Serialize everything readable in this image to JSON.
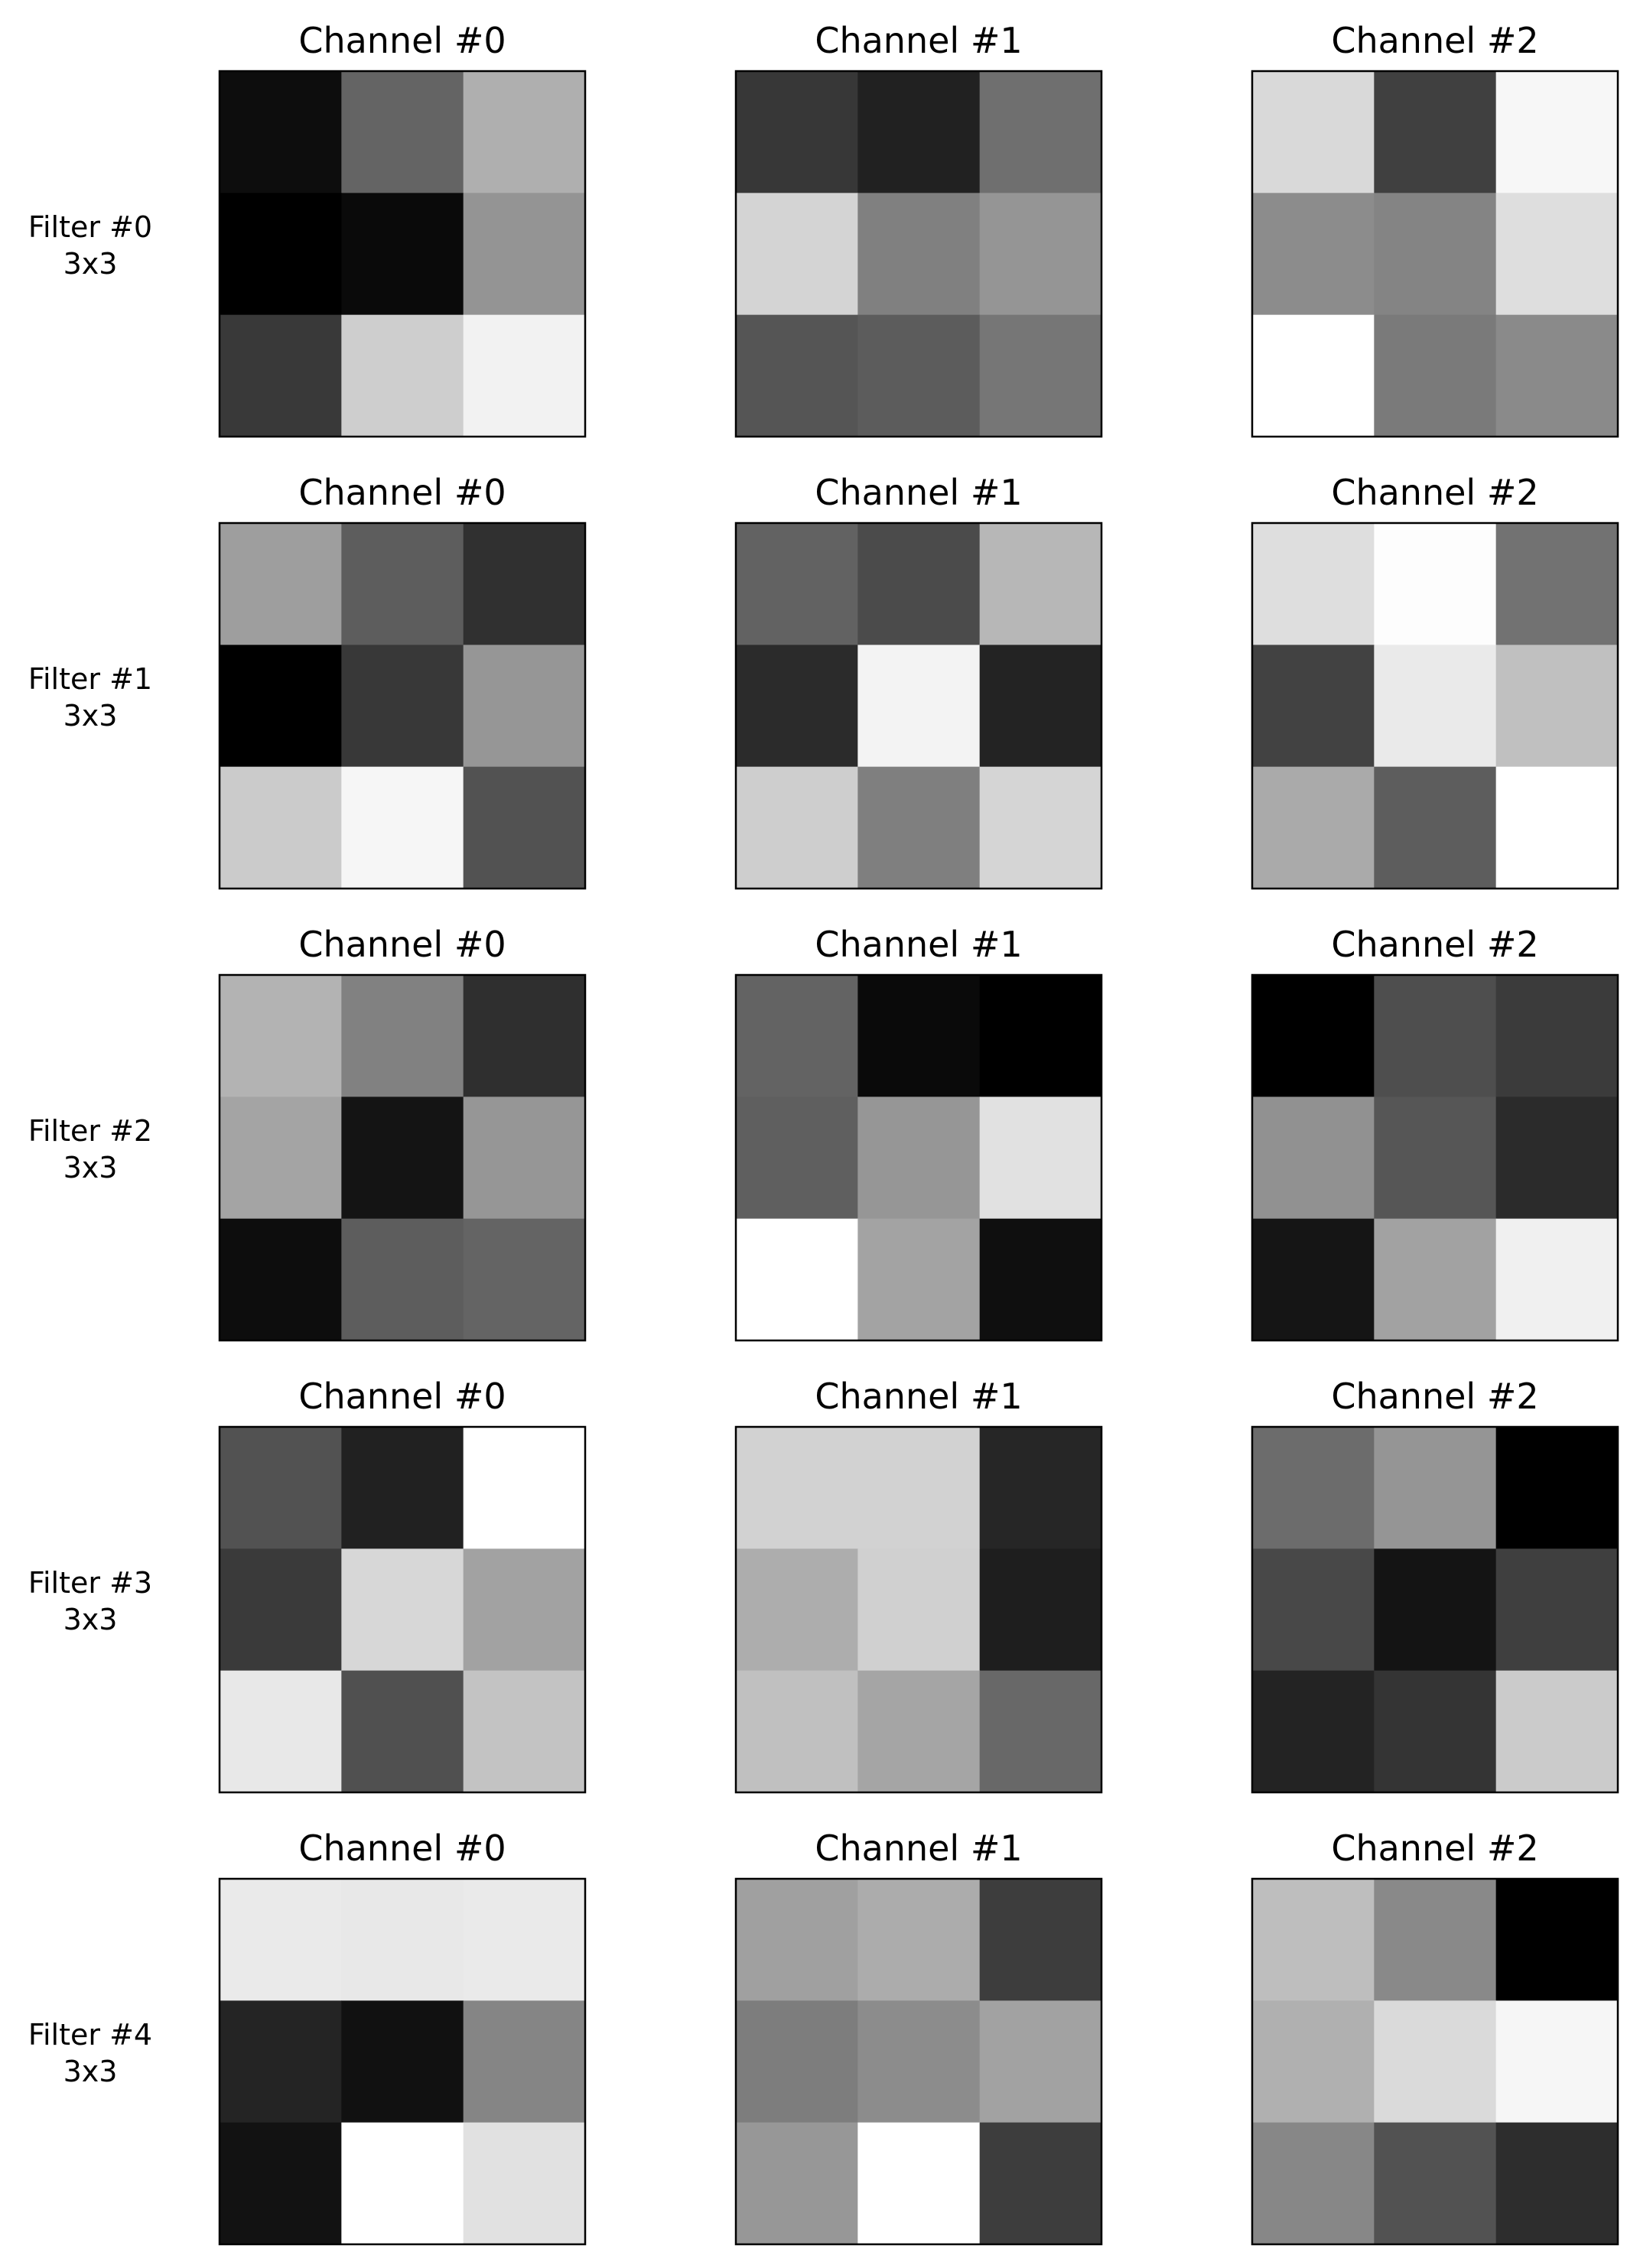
{
  "chart_data": {
    "type": "heatmap",
    "colormap": "gray",
    "value_scale": "grayscale intensity 0-255 (0 = black, 255 = white), read from pixels",
    "columns": [
      "Channel #0",
      "Channel #1",
      "Channel #2"
    ],
    "rows": [
      {
        "label_line1": "Filter #0",
        "label_line2": "3x3",
        "channels": [
          [
            [
              13,
              100,
              175
            ],
            [
              0,
              10,
              148
            ],
            [
              57,
              206,
              242
            ]
          ],
          [
            [
              55,
              33,
              111
            ],
            [
              212,
              128,
              149
            ],
            [
              85,
              92,
              118
            ]
          ],
          [
            [
              217,
              64,
              247
            ],
            [
              140,
              132,
              222
            ],
            [
              255,
              122,
              138
            ]
          ]
        ]
      },
      {
        "label_line1": "Filter #1",
        "label_line2": "3x3",
        "channels": [
          [
            [
              158,
              93,
              48
            ],
            [
              0,
              56,
              150
            ],
            [
              203,
              246,
              82
            ]
          ],
          [
            [
              98,
              75,
              183
            ],
            [
              43,
              243,
              35
            ],
            [
              206,
              127,
              213
            ]
          ],
          [
            [
              222,
              253,
              114
            ],
            [
              66,
              234,
              192
            ],
            [
              170,
              93,
              255
            ]
          ]
        ]
      },
      {
        "label_line1": "Filter #2",
        "label_line2": "3x3",
        "channels": [
          [
            [
              179,
              129,
              47
            ],
            [
              164,
              20,
              150
            ],
            [
              13,
              93,
              100
            ]
          ],
          [
            [
              99,
              10,
              0
            ],
            [
              95,
              150,
              225
            ],
            [
              255,
              163,
              15
            ]
          ],
          [
            [
              0,
              78,
              59
            ],
            [
              145,
              86,
              43
            ],
            [
              21,
              162,
              240
            ]
          ]
        ]
      },
      {
        "label_line1": "Filter #3",
        "label_line2": "3x3",
        "channels": [
          [
            [
              82,
              33,
              255
            ],
            [
              58,
              215,
              162
            ],
            [
              232,
              80,
              195
            ]
          ],
          [
            [
              210,
              210,
              38
            ],
            [
              173,
              208,
              30
            ],
            [
              192,
              165,
              104
            ]
          ],
          [
            [
              108,
              149,
              0
            ],
            [
              72,
              20,
              63
            ],
            [
              35,
              52,
              203
            ]
          ]
        ]
      },
      {
        "label_line1": "Filter #4",
        "label_line2": "3x3",
        "channels": [
          [
            [
              234,
              232,
              234
            ],
            [
              36,
              17,
              133
            ],
            [
              18,
              255,
              225
            ]
          ],
          [
            [
              160,
              172,
              61
            ],
            [
              125,
              140,
              162
            ],
            [
              151,
              255,
              61
            ]
          ],
          [
            [
              190,
              137,
              0
            ],
            [
              176,
              218,
              246
            ],
            [
              135,
              82,
              45
            ]
          ]
        ]
      }
    ]
  }
}
